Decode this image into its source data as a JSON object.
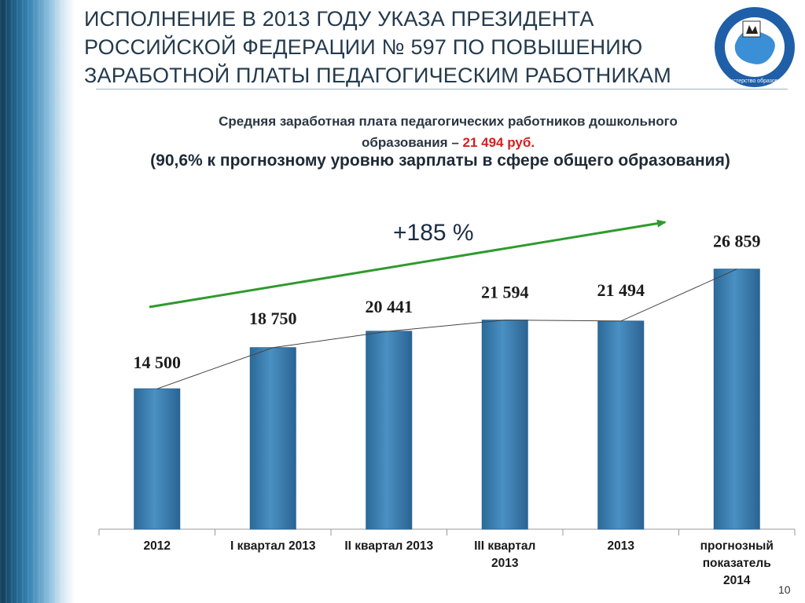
{
  "slide": {
    "title": "ИСПОЛНЕНИЕ В 2013 ГОДУ УКАЗА ПРЕЗИДЕНТА РОССИЙСКОЙ ФЕДЕРАЦИИ № 597 ПО ПОВЫШЕНИЮ ЗАРАБОТНОЙ ПЛАТЫ ПЕДАГОГИЧЕСКИМ РАБОТНИКАМ",
    "subtitle_line1": "Средняя заработная плата педагогических работников дошкольного",
    "subtitle_line2_prefix": "образования – ",
    "subtitle_line2_accent": "21 494 руб.",
    "subtitle2": "(90,6% к  прогнозному уровню зарплаты в сфере общего образования)",
    "growth_label": "+185 %",
    "page_number": "10",
    "logo_text": "Министерство образования Иркутской области",
    "colors": {
      "bar": "#3a7fb0",
      "bar_edge": "#2a6594",
      "arrow": "#2f9a2f",
      "accent_red": "#d42020",
      "title": "#243a4c"
    }
  },
  "chart_data": {
    "type": "bar",
    "categories": [
      "2012",
      "I квартал 2013",
      "II квартал 2013",
      "III  квартал 2013",
      "2013",
      "прогнозный показатель 2014"
    ],
    "category_lines": [
      [
        "2012"
      ],
      [
        "I квартал 2013"
      ],
      [
        "II квартал 2013"
      ],
      [
        "III  квартал",
        "2013"
      ],
      [
        "2013"
      ],
      [
        "прогнозный",
        "показатель",
        "2014"
      ]
    ],
    "values": [
      14500,
      18750,
      20441,
      21594,
      21494,
      26859
    ],
    "value_labels": [
      "14 500",
      "18 750",
      "20 441",
      "21 594",
      "21 494",
      "26 859"
    ],
    "ylim": [
      0,
      30000
    ],
    "grid": false,
    "legend": "none",
    "annotation": "+185 %"
  }
}
